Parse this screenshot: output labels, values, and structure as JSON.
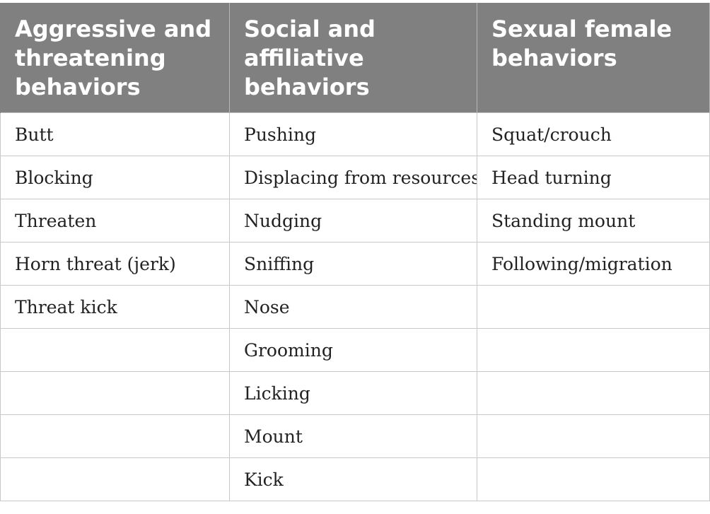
{
  "table": {
    "headers": [
      "Aggressive and threatening behaviors",
      "Social and affiliative behaviors",
      "Sexual female behaviors"
    ],
    "rows": [
      [
        "Butt",
        "Pushing",
        "Squat/crouch"
      ],
      [
        "Blocking",
        "Displacing from resources",
        "Head turning"
      ],
      [
        "Threaten",
        "Nudging",
        "Standing mount"
      ],
      [
        "Horn threat (jerk)",
        "Sniffing",
        "Following/migration"
      ],
      [
        "Threat kick",
        "Nose",
        ""
      ],
      [
        "",
        "Grooming",
        ""
      ],
      [
        "",
        "Licking",
        ""
      ],
      [
        "",
        "Mount",
        ""
      ],
      [
        "",
        "Kick",
        ""
      ]
    ]
  }
}
